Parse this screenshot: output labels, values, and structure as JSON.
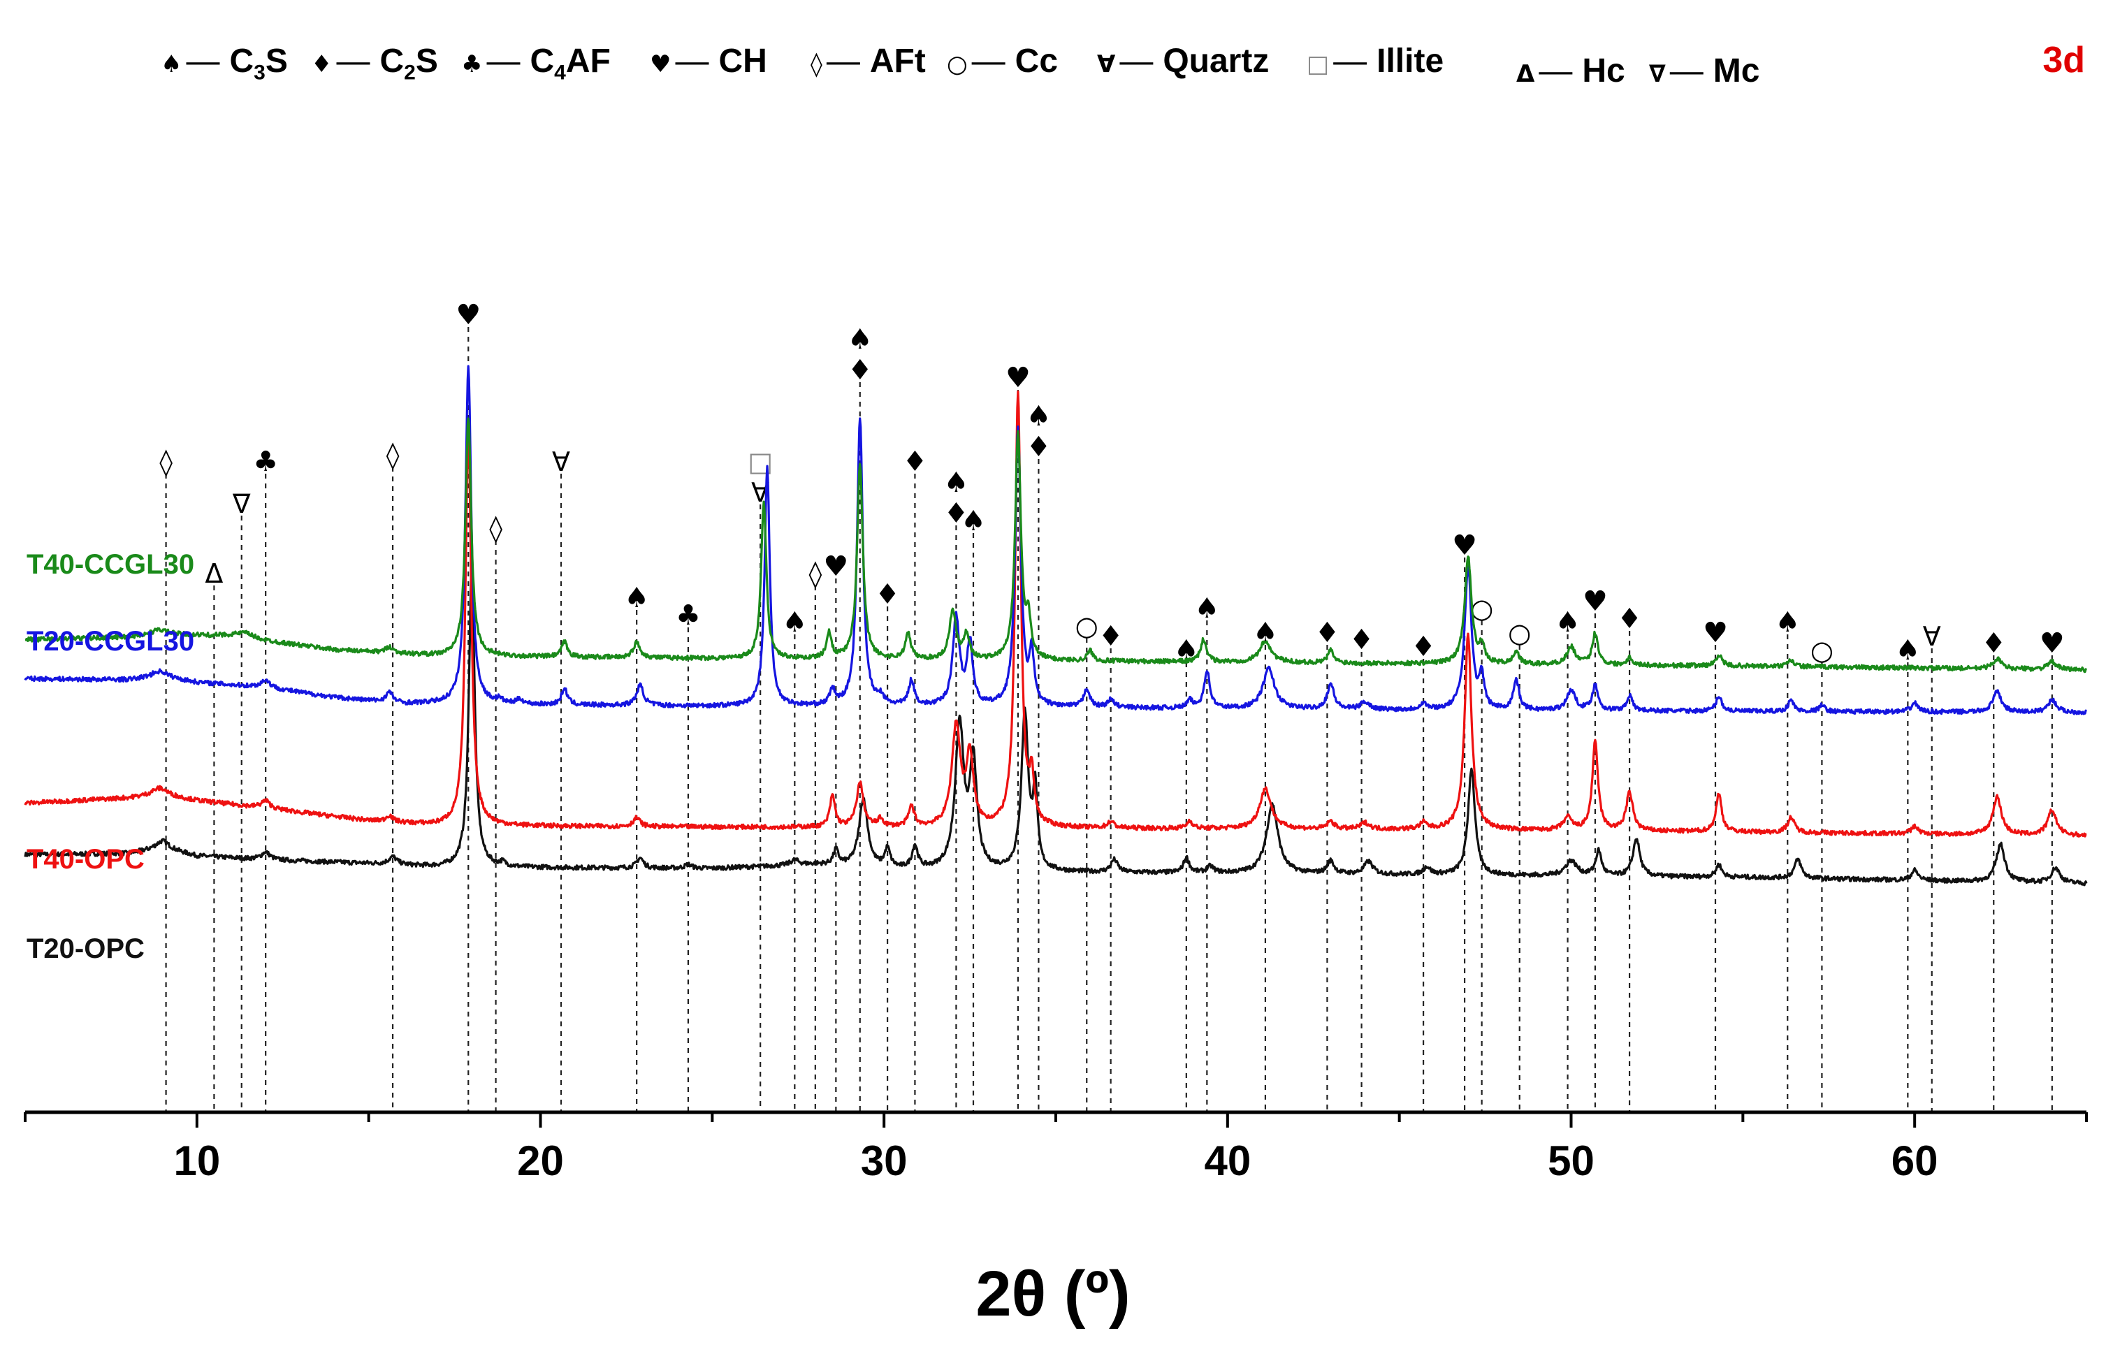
{
  "chart_data": {
    "type": "line",
    "title": "",
    "panel_tag": "3d",
    "xlabel": "2θ (º)",
    "ylabel": "",
    "xlim": [
      5,
      65
    ],
    "x_ticks": [
      10,
      20,
      30,
      40,
      50,
      60
    ],
    "grid": false,
    "legend_position": "top",
    "legend": [
      {
        "symbol": "♠",
        "dash": "—",
        "label": "C3S",
        "main": "C",
        "sub": "3",
        "tail": "S"
      },
      {
        "symbol": "♦",
        "dash": "—",
        "label": "C2S",
        "main": "C",
        "sub": "2",
        "tail": "S"
      },
      {
        "symbol": "♣",
        "dash": "—",
        "label": "C4AF",
        "main": "C",
        "sub": "4",
        "tail": "AF"
      },
      {
        "symbol": "♥",
        "dash": "—",
        "label": "CH",
        "main": "CH",
        "sub": "",
        "tail": ""
      },
      {
        "symbol": "◊",
        "dash": "—",
        "label": "AFt",
        "main": "AFt",
        "sub": "",
        "tail": ""
      },
      {
        "symbol": "○",
        "dash": "—",
        "label": "Cc",
        "main": "Cc",
        "sub": "",
        "tail": ""
      },
      {
        "symbol": "∀",
        "dash": "—",
        "label": "Quartz",
        "main": "Quartz",
        "sub": "",
        "tail": ""
      },
      {
        "symbol": "□",
        "dash": "—",
        "label": "Illite",
        "main": "Illite",
        "sub": "",
        "tail": ""
      },
      {
        "symbol": "Δ",
        "dash": "—",
        "label": "Hc",
        "main": "Hc",
        "sub": "",
        "tail": ""
      },
      {
        "symbol": "∇",
        "dash": "—",
        "label": "Mc",
        "main": "Mc",
        "sub": "",
        "tail": ""
      }
    ],
    "series": [
      {
        "name": "T40-CCGL30",
        "color": "#1a8a1a",
        "baseline": [
          [
            5,
            0.58
          ],
          [
            8,
            0.6
          ],
          [
            9,
            0.62
          ],
          [
            11,
            0.61
          ],
          [
            12,
            0.57
          ],
          [
            14,
            0.5
          ],
          [
            17,
            0.45
          ],
          [
            25,
            0.43
          ],
          [
            35,
            0.41
          ],
          [
            45,
            0.39
          ],
          [
            55,
            0.37
          ],
          [
            65,
            0.34
          ]
        ],
        "peaks": [
          [
            8.9,
            0.04,
            0.3
          ],
          [
            11.4,
            0.04,
            0.3
          ],
          [
            15.6,
            0.05,
            0.12
          ],
          [
            17.9,
            1.9,
            0.1
          ],
          [
            20.7,
            0.12,
            0.1
          ],
          [
            22.8,
            0.12,
            0.12
          ],
          [
            26.5,
            1.25,
            0.09
          ],
          [
            28.4,
            0.2,
            0.09
          ],
          [
            29.3,
            1.55,
            0.1
          ],
          [
            30.7,
            0.2,
            0.1
          ],
          [
            32.0,
            0.38,
            0.12
          ],
          [
            32.4,
            0.2,
            0.1
          ],
          [
            33.9,
            1.8,
            0.1
          ],
          [
            34.2,
            0.3,
            0.08
          ],
          [
            36.0,
            0.08,
            0.1
          ],
          [
            39.3,
            0.18,
            0.1
          ],
          [
            41.1,
            0.17,
            0.2
          ],
          [
            43.0,
            0.1,
            0.1
          ],
          [
            47.0,
            0.85,
            0.12
          ],
          [
            47.4,
            0.14,
            0.08
          ],
          [
            48.4,
            0.1,
            0.1
          ],
          [
            50.0,
            0.14,
            0.15
          ],
          [
            50.7,
            0.25,
            0.1
          ],
          [
            51.7,
            0.06,
            0.1
          ],
          [
            54.3,
            0.09,
            0.1
          ],
          [
            56.4,
            0.05,
            0.1
          ],
          [
            62.4,
            0.08,
            0.15
          ],
          [
            64.0,
            0.06,
            0.15
          ]
        ]
      },
      {
        "name": "T20-CCGL30",
        "color": "#1515e0",
        "baseline": [
          [
            5,
            0.27
          ],
          [
            8,
            0.26
          ],
          [
            9,
            0.28
          ],
          [
            10,
            0.24
          ],
          [
            12,
            0.2
          ],
          [
            14,
            0.12
          ],
          [
            16,
            0.07
          ],
          [
            25,
            0.05
          ],
          [
            35,
            0.04
          ],
          [
            45,
            0.02
          ],
          [
            55,
            0.01
          ],
          [
            65,
            0.0
          ]
        ],
        "peaks": [
          [
            8.9,
            0.05,
            0.3
          ],
          [
            12.0,
            0.06,
            0.15
          ],
          [
            15.6,
            0.08,
            0.12
          ],
          [
            17.9,
            2.7,
            0.1
          ],
          [
            18.8,
            0.03,
            0.1
          ],
          [
            19.4,
            0.04,
            0.1
          ],
          [
            20.7,
            0.13,
            0.1
          ],
          [
            22.9,
            0.16,
            0.12
          ],
          [
            26.6,
            1.9,
            0.09
          ],
          [
            28.5,
            0.12,
            0.09
          ],
          [
            29.3,
            2.3,
            0.1
          ],
          [
            29.9,
            0.06,
            0.1
          ],
          [
            30.8,
            0.2,
            0.1
          ],
          [
            32.1,
            0.7,
            0.12
          ],
          [
            32.5,
            0.5,
            0.1
          ],
          [
            33.9,
            2.2,
            0.1
          ],
          [
            34.3,
            0.4,
            0.08
          ],
          [
            35.9,
            0.15,
            0.1
          ],
          [
            36.6,
            0.06,
            0.12
          ],
          [
            38.9,
            0.06,
            0.1
          ],
          [
            39.4,
            0.3,
            0.1
          ],
          [
            41.2,
            0.32,
            0.2
          ],
          [
            43.0,
            0.2,
            0.12
          ],
          [
            44.0,
            0.06,
            0.15
          ],
          [
            45.7,
            0.05,
            0.12
          ],
          [
            47.0,
            1.14,
            0.12
          ],
          [
            47.4,
            0.25,
            0.08
          ],
          [
            48.4,
            0.24,
            0.1
          ],
          [
            50.0,
            0.16,
            0.15
          ],
          [
            50.7,
            0.2,
            0.1
          ],
          [
            51.7,
            0.12,
            0.1
          ],
          [
            54.3,
            0.12,
            0.1
          ],
          [
            56.4,
            0.09,
            0.1
          ],
          [
            57.3,
            0.05,
            0.1
          ],
          [
            60.0,
            0.07,
            0.12
          ],
          [
            62.4,
            0.16,
            0.15
          ],
          [
            64.0,
            0.1,
            0.15
          ]
        ]
      },
      {
        "name": "T40-OPC",
        "color": "#ee1111",
        "baseline": [
          [
            5,
            -0.72
          ],
          [
            8,
            -0.68
          ],
          [
            9,
            -0.66
          ],
          [
            10,
            -0.7
          ],
          [
            12,
            -0.76
          ],
          [
            15,
            -0.86
          ],
          [
            17,
            -0.9
          ],
          [
            25,
            -0.91
          ],
          [
            35,
            -0.92
          ],
          [
            45,
            -0.93
          ],
          [
            55,
            -0.95
          ],
          [
            65,
            -0.98
          ]
        ],
        "peaks": [
          [
            8.9,
            0.06,
            0.3
          ],
          [
            12.0,
            0.06,
            0.15
          ],
          [
            15.6,
            0.05,
            0.12
          ],
          [
            17.9,
            3.2,
            0.1
          ],
          [
            22.8,
            0.07,
            0.12
          ],
          [
            28.5,
            0.25,
            0.09
          ],
          [
            29.3,
            0.35,
            0.12
          ],
          [
            29.9,
            0.06,
            0.1
          ],
          [
            30.8,
            0.16,
            0.1
          ],
          [
            32.1,
            0.8,
            0.15
          ],
          [
            32.5,
            0.55,
            0.12
          ],
          [
            33.9,
            3.45,
            0.1
          ],
          [
            34.3,
            0.35,
            0.08
          ],
          [
            36.6,
            0.05,
            0.12
          ],
          [
            38.9,
            0.06,
            0.1
          ],
          [
            41.1,
            0.32,
            0.2
          ],
          [
            43.0,
            0.06,
            0.12
          ],
          [
            44.0,
            0.05,
            0.15
          ],
          [
            45.7,
            0.05,
            0.12
          ],
          [
            47.0,
            1.55,
            0.12
          ],
          [
            49.9,
            0.1,
            0.15
          ],
          [
            50.7,
            0.7,
            0.1
          ],
          [
            51.7,
            0.3,
            0.12
          ],
          [
            54.3,
            0.3,
            0.1
          ],
          [
            56.4,
            0.12,
            0.12
          ],
          [
            60.0,
            0.06,
            0.12
          ],
          [
            62.4,
            0.3,
            0.15
          ],
          [
            64.0,
            0.2,
            0.15
          ]
        ]
      },
      {
        "name": "T20-OPC",
        "color": "#111111",
        "baseline": [
          [
            5,
            -1.13
          ],
          [
            8,
            -1.12
          ],
          [
            9,
            -1.08
          ],
          [
            10,
            -1.14
          ],
          [
            12,
            -1.17
          ],
          [
            15,
            -1.2
          ],
          [
            17,
            -1.23
          ],
          [
            25,
            -1.24
          ],
          [
            28,
            -1.21
          ],
          [
            30,
            -1.25
          ],
          [
            35,
            -1.27
          ],
          [
            45,
            -1.29
          ],
          [
            55,
            -1.31
          ],
          [
            65,
            -1.36
          ]
        ],
        "peaks": [
          [
            9.0,
            0.06,
            0.25
          ],
          [
            12.0,
            0.06,
            0.15
          ],
          [
            15.7,
            0.06,
            0.15
          ],
          [
            18.0,
            2.4,
            0.1
          ],
          [
            18.9,
            0.03,
            0.1
          ],
          [
            22.9,
            0.08,
            0.12
          ],
          [
            24.3,
            0.03,
            0.12
          ],
          [
            27.4,
            0.04,
            0.15
          ],
          [
            28.6,
            0.12,
            0.09
          ],
          [
            29.4,
            0.55,
            0.15
          ],
          [
            30.1,
            0.15,
            0.1
          ],
          [
            30.9,
            0.18,
            0.1
          ],
          [
            32.2,
            1.15,
            0.15
          ],
          [
            32.6,
            0.85,
            0.12
          ],
          [
            34.1,
            1.25,
            0.12
          ],
          [
            34.4,
            0.6,
            0.08
          ],
          [
            36.7,
            0.1,
            0.12
          ],
          [
            38.8,
            0.12,
            0.1
          ],
          [
            39.5,
            0.05,
            0.12
          ],
          [
            41.3,
            0.55,
            0.2
          ],
          [
            43.0,
            0.1,
            0.12
          ],
          [
            44.1,
            0.1,
            0.15
          ],
          [
            45.8,
            0.06,
            0.12
          ],
          [
            47.1,
            0.85,
            0.12
          ],
          [
            50.0,
            0.12,
            0.2
          ],
          [
            50.8,
            0.2,
            0.1
          ],
          [
            51.9,
            0.3,
            0.12
          ],
          [
            54.3,
            0.1,
            0.1
          ],
          [
            56.6,
            0.15,
            0.12
          ],
          [
            60.0,
            0.08,
            0.12
          ],
          [
            62.5,
            0.3,
            0.15
          ],
          [
            64.1,
            0.12,
            0.15
          ]
        ]
      }
    ],
    "peak_markers": [
      {
        "x": 9.1,
        "symbols": [
          "◊"
        ]
      },
      {
        "x": 10.5,
        "symbols": [
          "Δ"
        ]
      },
      {
        "x": 11.3,
        "symbols": [
          "∇"
        ]
      },
      {
        "x": 12.0,
        "symbols": [
          "♣"
        ]
      },
      {
        "x": 15.7,
        "symbols": [
          "◊"
        ]
      },
      {
        "x": 17.9,
        "symbols": [
          "♥"
        ]
      },
      {
        "x": 18.7,
        "symbols": [
          "◊"
        ]
      },
      {
        "x": 20.6,
        "symbols": [
          "∀"
        ]
      },
      {
        "x": 22.8,
        "symbols": [
          "♠"
        ]
      },
      {
        "x": 24.3,
        "symbols": [
          "♣"
        ]
      },
      {
        "x": 26.4,
        "symbols": [
          "□",
          "∀"
        ]
      },
      {
        "x": 27.4,
        "symbols": [
          "♠"
        ]
      },
      {
        "x": 28.0,
        "symbols": [
          "◊"
        ]
      },
      {
        "x": 28.6,
        "symbols": [
          "♥"
        ]
      },
      {
        "x": 29.3,
        "symbols": [
          "♠",
          "♦"
        ]
      },
      {
        "x": 30.1,
        "symbols": [
          "♦"
        ]
      },
      {
        "x": 30.9,
        "symbols": [
          "♦"
        ]
      },
      {
        "x": 32.1,
        "symbols": [
          "♠",
          "♦"
        ]
      },
      {
        "x": 32.6,
        "symbols": [
          "♠"
        ]
      },
      {
        "x": 33.9,
        "symbols": [
          "♥"
        ]
      },
      {
        "x": 34.5,
        "symbols": [
          "♠",
          "♦"
        ]
      },
      {
        "x": 35.9,
        "symbols": [
          "○"
        ]
      },
      {
        "x": 36.6,
        "symbols": [
          "♦"
        ]
      },
      {
        "x": 38.8,
        "symbols": [
          "♠"
        ]
      },
      {
        "x": 39.4,
        "symbols": [
          "♠"
        ]
      },
      {
        "x": 41.1,
        "symbols": [
          "♠"
        ]
      },
      {
        "x": 42.9,
        "symbols": [
          "♦"
        ]
      },
      {
        "x": 43.9,
        "symbols": [
          "♦"
        ]
      },
      {
        "x": 45.7,
        "symbols": [
          "♦"
        ]
      },
      {
        "x": 46.9,
        "symbols": [
          "♥"
        ]
      },
      {
        "x": 47.4,
        "symbols": [
          "○"
        ]
      },
      {
        "x": 48.5,
        "symbols": [
          "○"
        ]
      },
      {
        "x": 49.9,
        "symbols": [
          "♠"
        ]
      },
      {
        "x": 50.7,
        "symbols": [
          "♥"
        ]
      },
      {
        "x": 51.7,
        "symbols": [
          "♦"
        ]
      },
      {
        "x": 54.2,
        "symbols": [
          "♥"
        ]
      },
      {
        "x": 56.3,
        "symbols": [
          "♠"
        ]
      },
      {
        "x": 57.3,
        "symbols": [
          "○"
        ]
      },
      {
        "x": 59.8,
        "symbols": [
          "♠"
        ]
      },
      {
        "x": 60.5,
        "symbols": [
          "∀"
        ]
      },
      {
        "x": 62.3,
        "symbols": [
          "♦"
        ]
      },
      {
        "x": 64.0,
        "symbols": [
          "♥"
        ]
      }
    ]
  }
}
